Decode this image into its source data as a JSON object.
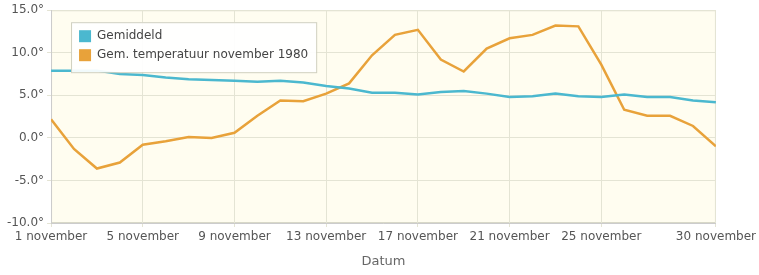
{
  "chart_data": {
    "type": "line",
    "x_label": "Datum",
    "categories": [
      "1 november",
      null,
      null,
      null,
      "5 november",
      null,
      null,
      null,
      "9 november",
      null,
      null,
      null,
      "13 november",
      null,
      null,
      null,
      "17 november",
      null,
      null,
      null,
      "21 november",
      null,
      null,
      null,
      "25 november",
      null,
      null,
      null,
      null,
      "30 november"
    ],
    "series": [
      {
        "name": "Gemiddeld",
        "color": "#4bb8cf",
        "values": [
          7.9,
          7.9,
          7.9,
          7.5,
          7.4,
          7.1,
          6.9,
          6.8,
          6.7,
          6.6,
          6.7,
          6.5,
          6.1,
          5.8,
          5.3,
          5.3,
          5.1,
          5.4,
          5.5,
          5.2,
          4.8,
          4.9,
          5.2,
          4.9,
          4.8,
          5.1,
          4.8,
          4.8,
          4.4,
          4.2
        ]
      },
      {
        "name": "Gem. temperatuur november 1980",
        "color": "#e8a23a",
        "values": [
          2.2,
          -1.3,
          -3.6,
          -2.9,
          -0.8,
          -0.4,
          0.1,
          0.0,
          0.6,
          2.6,
          4.4,
          4.3,
          5.2,
          6.4,
          9.7,
          12.1,
          12.7,
          9.2,
          7.8,
          10.5,
          11.7,
          12.1,
          13.2,
          13.1,
          8.6,
          3.3,
          2.6,
          2.6,
          1.4,
          -1.0
        ]
      }
    ],
    "ylim": [
      -10,
      15
    ],
    "yticks": [
      {
        "value": -10,
        "label": "-10.0°"
      },
      {
        "value": -5,
        "label": "-5.0°"
      },
      {
        "value": 0,
        "label": "0.0°"
      },
      {
        "value": 5,
        "label": "5.0°"
      },
      {
        "value": 10,
        "label": "10.0°"
      },
      {
        "value": 15,
        "label": "15.0°"
      }
    ],
    "grid": true,
    "legend": "upper left",
    "marker": "none"
  }
}
